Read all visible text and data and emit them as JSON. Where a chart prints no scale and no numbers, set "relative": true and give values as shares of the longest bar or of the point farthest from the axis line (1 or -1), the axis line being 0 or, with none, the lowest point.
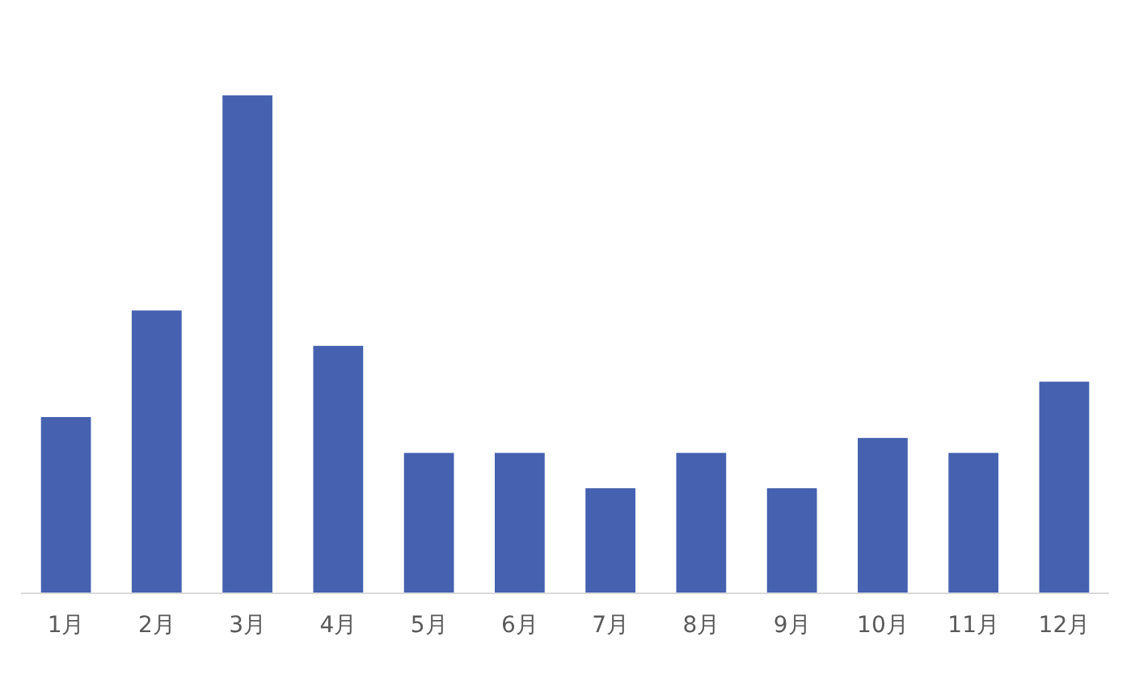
{
  "chart_data": {
    "type": "bar",
    "relative": true,
    "categories": [
      "1月",
      "2月",
      "3月",
      "4月",
      "5月",
      "6月",
      "7月",
      "8月",
      "9月",
      "10月",
      "11月",
      "12月"
    ],
    "values": [
      0.354,
      0.568,
      1,
      0.497,
      0.282,
      0.282,
      0.211,
      0.282,
      0.211,
      0.312,
      0.282,
      0.425
    ],
    "color": "#4561b0"
  }
}
